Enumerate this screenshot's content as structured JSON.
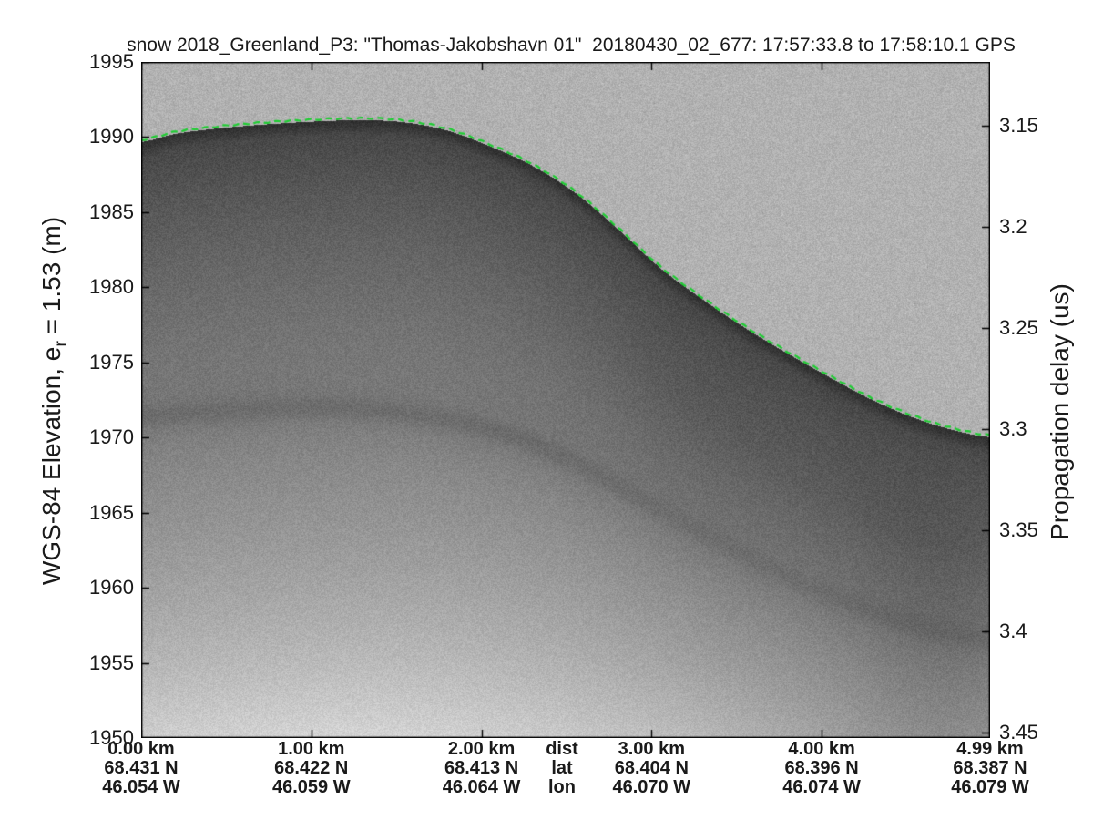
{
  "title": "snow 2018_Greenland_P3: \"Thomas-Jakobshavn 01\"  20180430_02_677: 17:57:33.8 to 17:58:10.1 GPS",
  "chart_data": {
    "type": "heatmap",
    "description": "Snow radar echogram: grayscale backscatter vs distance and elevation, with tracked air/snow surface drawn as green dashed line",
    "title": "snow 2018_Greenland_P3: \"Thomas-Jakobshavn 01\"  20180430_02_677: 17:57:33.8 to 17:58:10.1 GPS",
    "grid": false,
    "legend": "none",
    "y_left": {
      "label_pre": "WGS-84 Elevation, e",
      "label_sub": "r",
      "label_post": " = 1.53 (m)",
      "unit": "m",
      "range": [
        1950,
        1995
      ],
      "ticks": [
        1995,
        1990,
        1985,
        1980,
        1975,
        1970,
        1965,
        1960,
        1955,
        1950
      ]
    },
    "y_right": {
      "label": "Propagation delay (us)",
      "unit": "us",
      "range": [
        3.1185,
        3.4527
      ],
      "ticks": [
        {
          "value": 3.15,
          "label": "3.15"
        },
        {
          "value": 3.2,
          "label": "3.2"
        },
        {
          "value": 3.25,
          "label": "3.25"
        },
        {
          "value": 3.3,
          "label": "3.3"
        },
        {
          "value": 3.35,
          "label": "3.35"
        },
        {
          "value": 3.4,
          "label": "3.4"
        },
        {
          "value": 3.45,
          "label": "3.45"
        }
      ]
    },
    "x": {
      "range_km": [
        0,
        4.99
      ],
      "tick_km": [
        0,
        1,
        2,
        3,
        4,
        4.99
      ],
      "header": {
        "dist": "dist",
        "lat": "lat",
        "lon": "lon"
      },
      "columns": [
        {
          "km": 0.0,
          "dist": "0.00 km",
          "lat": "68.431 N",
          "lon": "46.054 W"
        },
        {
          "km": 1.0,
          "dist": "1.00 km",
          "lat": "68.422 N",
          "lon": "46.059 W"
        },
        {
          "km": 2.0,
          "dist": "2.00 km",
          "lat": "68.413 N",
          "lon": "46.064 W"
        },
        {
          "km": 3.0,
          "dist": "3.00 km",
          "lat": "68.404 N",
          "lon": "46.070 W"
        },
        {
          "km": 4.0,
          "dist": "4.00 km",
          "lat": "68.396 N",
          "lon": "46.074 W"
        },
        {
          "km": 4.99,
          "dist": "4.99 km",
          "lat": "68.387 N",
          "lon": "46.079 W"
        }
      ]
    },
    "surface_line": {
      "name": "tracked surface",
      "color": "#1ecd32",
      "style": "dashed",
      "points_km_elev": [
        [
          0.0,
          1989.7
        ],
        [
          0.2,
          1990.25
        ],
        [
          0.45,
          1990.6
        ],
        [
          0.7,
          1990.85
        ],
        [
          1.0,
          1991.05
        ],
        [
          1.3,
          1991.15
        ],
        [
          1.55,
          1991.0
        ],
        [
          1.8,
          1990.45
        ],
        [
          2.05,
          1989.4
        ],
        [
          2.3,
          1988.1
        ],
        [
          2.55,
          1986.3
        ],
        [
          2.8,
          1983.9
        ],
        [
          3.05,
          1981.3
        ],
        [
          3.3,
          1979.2
        ],
        [
          3.55,
          1977.3
        ],
        [
          3.8,
          1975.6
        ],
        [
          4.05,
          1974.0
        ],
        [
          4.3,
          1972.5
        ],
        [
          4.55,
          1971.3
        ],
        [
          4.78,
          1970.5
        ],
        [
          4.99,
          1970.05
        ]
      ]
    },
    "internal_layer_km_elev": [
      [
        0.0,
        1971.4
      ],
      [
        0.5,
        1971.8
      ],
      [
        1.0,
        1972.0
      ],
      [
        1.5,
        1971.7
      ],
      [
        2.0,
        1970.7
      ],
      [
        2.3,
        1969.6
      ],
      [
        2.6,
        1968.0
      ],
      [
        3.0,
        1965.5
      ],
      [
        3.4,
        1963.0
      ],
      [
        3.8,
        1960.7
      ],
      [
        4.2,
        1958.8
      ],
      [
        4.6,
        1957.4
      ],
      [
        4.99,
        1956.6
      ]
    ],
    "colors": {
      "air": "#b2b2b2",
      "surface_return": "#323232",
      "deep_bright": "#cdcdcd",
      "frame": "#000000",
      "text": "#1a1a1a"
    }
  }
}
